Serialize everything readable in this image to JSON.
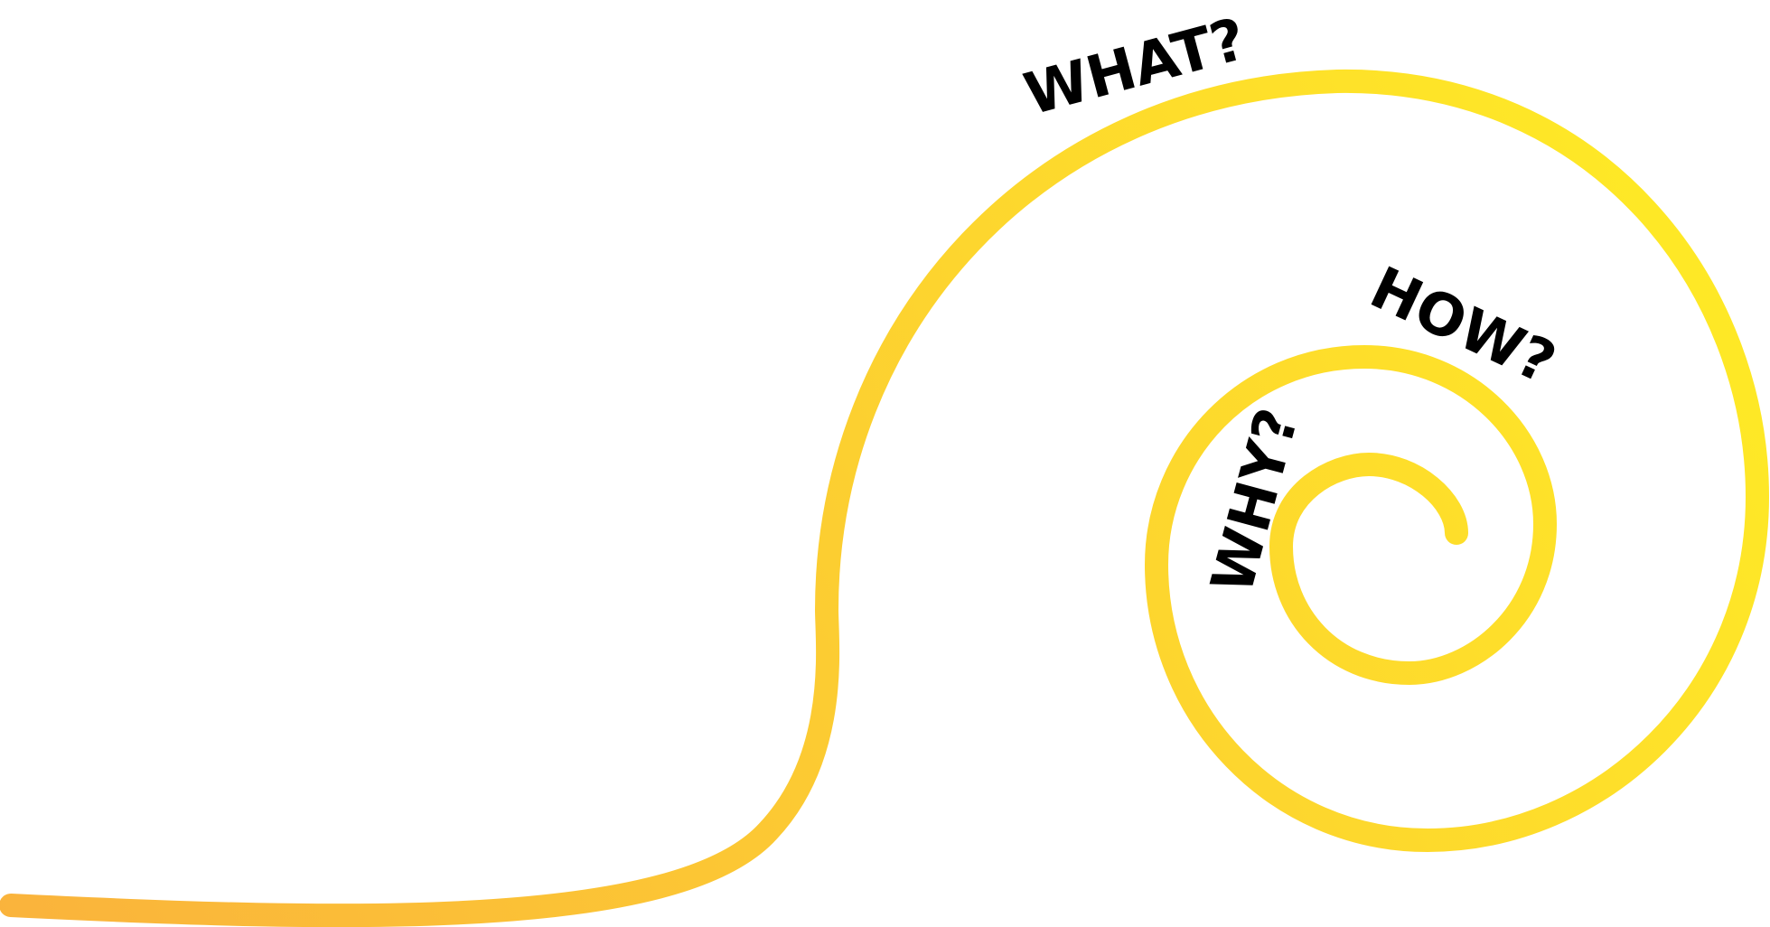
{
  "labels": {
    "what": "WHAT?",
    "how": "HOW?",
    "why": "WHY?"
  },
  "colors": {
    "gradient_start": "#FAB33C",
    "gradient_end": "#FFEE24",
    "text": "#000000",
    "background": "#FFFFFF"
  }
}
